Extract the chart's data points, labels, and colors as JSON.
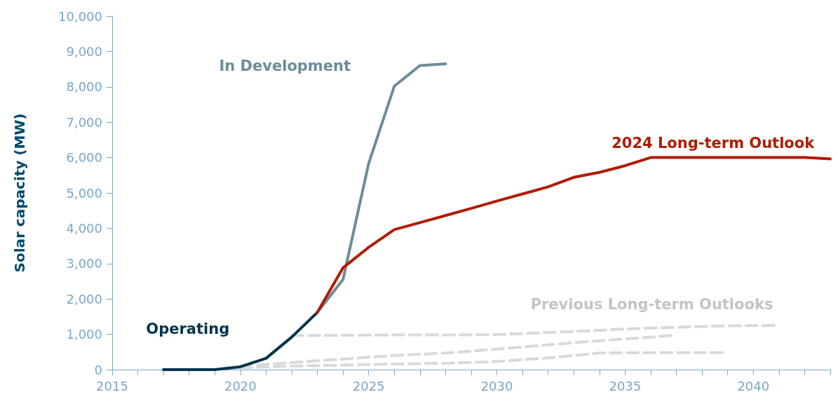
{
  "chart_data": {
    "type": "line",
    "ylabel": "Solar capacity (MW)",
    "xlim": [
      2015,
      2043
    ],
    "ylim": [
      0,
      10000
    ],
    "xticks": [
      {
        "value": 2015,
        "label": "2015"
      },
      {
        "value": 2016,
        "label": null
      },
      {
        "value": 2017,
        "label": null
      },
      {
        "value": 2018,
        "label": null
      },
      {
        "value": 2019,
        "label": null
      },
      {
        "value": 2020,
        "label": "2020"
      },
      {
        "value": 2021,
        "label": null
      },
      {
        "value": 2022,
        "label": null
      },
      {
        "value": 2023,
        "label": null
      },
      {
        "value": 2024,
        "label": null
      },
      {
        "value": 2025,
        "label": "2025"
      },
      {
        "value": 2026,
        "label": null
      },
      {
        "value": 2027,
        "label": null
      },
      {
        "value": 2028,
        "label": null
      },
      {
        "value": 2029,
        "label": null
      },
      {
        "value": 2030,
        "label": "2030"
      },
      {
        "value": 2031,
        "label": null
      },
      {
        "value": 2032,
        "label": null
      },
      {
        "value": 2033,
        "label": null
      },
      {
        "value": 2034,
        "label": null
      },
      {
        "value": 2035,
        "label": "2035"
      },
      {
        "value": 2036,
        "label": null
      },
      {
        "value": 2037,
        "label": null
      },
      {
        "value": 2038,
        "label": null
      },
      {
        "value": 2039,
        "label": null
      },
      {
        "value": 2040,
        "label": "2040"
      },
      {
        "value": 2041,
        "label": null
      },
      {
        "value": 2042,
        "label": null
      },
      {
        "value": 2043,
        "label": null
      }
    ],
    "yticks": [
      0,
      {
        "value": 1000,
        "label": "1,000"
      },
      {
        "value": 2000,
        "label": "2,000"
      },
      {
        "value": 3000,
        "label": "3,000"
      },
      {
        "value": 4000,
        "label": "4,000"
      },
      {
        "value": 5000,
        "label": "5,000"
      },
      {
        "value": 6000,
        "label": "6,000"
      },
      {
        "value": 7000,
        "label": "7,000"
      },
      {
        "value": 8000,
        "label": "8,000"
      },
      {
        "value": 9000,
        "label": "9,000"
      },
      {
        "value": 10000,
        "label": "10,000"
      }
    ],
    "grid": false,
    "marker": "none",
    "series": [
      {
        "color": "#003349",
        "line_style": "solid",
        "x": [
          2017,
          2018,
          2019,
          2020,
          2021,
          2022,
          2023
        ],
        "values": [
          0,
          0,
          0,
          80,
          320,
          920,
          1620
        ]
      },
      {
        "color": "#6e8c99",
        "line_style": "solid",
        "x": [
          2023,
          2024,
          2025,
          2026,
          2027,
          2028
        ],
        "values": [
          1620,
          2550,
          5830,
          8020,
          8600,
          8650
        ]
      },
      {
        "color": "#b01c02",
        "line_style": "solid",
        "x": [
          2023,
          2024,
          2025,
          2026,
          2027,
          2028,
          2029,
          2030,
          2031,
          2032,
          2033,
          2034,
          2035,
          2036,
          2037,
          2038,
          2039,
          2040,
          2041,
          2042,
          2043
        ],
        "values": [
          1620,
          2880,
          3460,
          3960,
          4160,
          4360,
          4560,
          4770,
          4970,
          5170,
          5440,
          5580,
          5770,
          6000,
          6000,
          6000,
          6000,
          6000,
          6000,
          6000,
          5960
        ]
      },
      {
        "color": "#d9d9d9",
        "line_style": "dashed",
        "x": [
          2022,
          2024,
          2026,
          2028,
          2030,
          2032,
          2034,
          2035,
          2037,
          2039,
          2041
        ],
        "values": [
          960,
          970,
          980,
          980,
          990,
          1050,
          1110,
          1150,
          1200,
          1240,
          1250
        ]
      },
      {
        "color": "#d9d9d9",
        "line_style": "dashed",
        "x": [
          2020,
          2022,
          2024,
          2026,
          2028,
          2030,
          2032,
          2034,
          2036,
          2037
        ],
        "values": [
          100,
          200,
          300,
          400,
          470,
          580,
          700,
          820,
          920,
          980
        ]
      },
      {
        "color": "#d9d9d9",
        "line_style": "dashed",
        "x": [
          2020,
          2022,
          2024,
          2026,
          2028,
          2030,
          2032,
          2034,
          2036,
          2039
        ],
        "values": [
          50,
          100,
          130,
          160,
          180,
          230,
          330,
          470,
          480,
          480
        ]
      }
    ],
    "annotations": [
      "Operating",
      "In Development",
      "2024 Long-term Outlook",
      "Previous Long-term Outlooks"
    ]
  }
}
